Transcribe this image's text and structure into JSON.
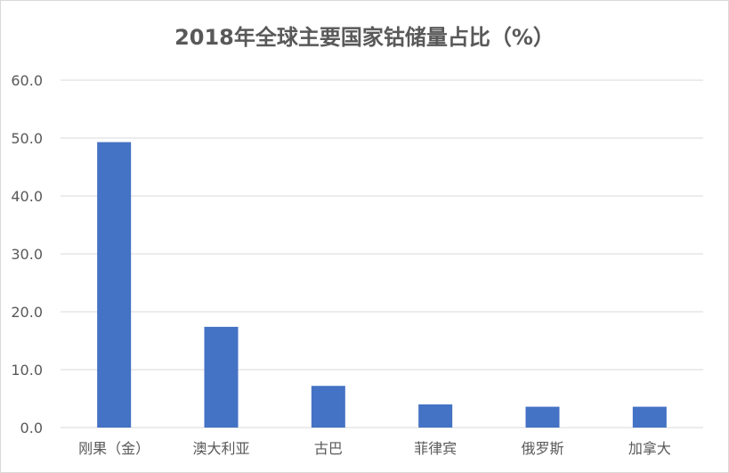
{
  "chart_data": {
    "type": "bar",
    "title": "2018年全球主要国家钴储量占比（%）",
    "categories": [
      "刚果（金）",
      "澳大利亚",
      "古巴",
      "菲律宾",
      "俄罗斯",
      "加拿大"
    ],
    "values": [
      49.3,
      17.4,
      7.2,
      4.0,
      3.6,
      3.6
    ],
    "ylim": [
      0,
      60
    ],
    "yticks": [
      "0.0",
      "10.0",
      "20.0",
      "30.0",
      "40.0",
      "50.0",
      "60.0"
    ],
    "grid": true,
    "legend": "none",
    "colors": {
      "bar": "#4472c4",
      "grid": "#d9d9d9",
      "text": "#595959"
    }
  }
}
